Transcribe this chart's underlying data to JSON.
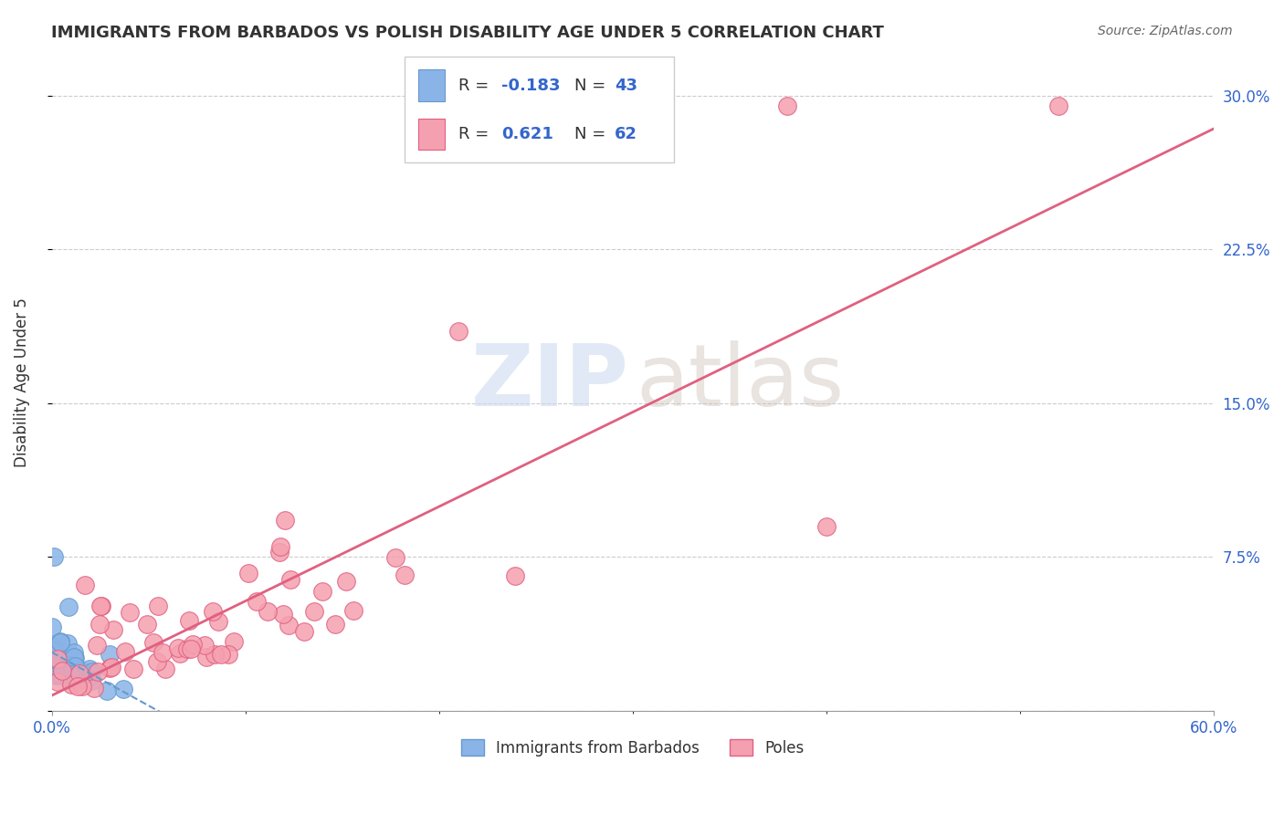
{
  "title": "IMMIGRANTS FROM BARBADOS VS POLISH DISABILITY AGE UNDER 5 CORRELATION CHART",
  "source": "Source: ZipAtlas.com",
  "ylabel": "Disability Age Under 5",
  "xlim": [
    0.0,
    0.6
  ],
  "ylim": [
    0.0,
    0.32
  ],
  "y_ticks": [
    0.0,
    0.075,
    0.15,
    0.225,
    0.3
  ],
  "y_tick_labels": [
    "",
    "7.5%",
    "15.0%",
    "22.5%",
    "30.0%"
  ],
  "grid_color": "#cccccc",
  "background_color": "#ffffff",
  "barbados_color": "#8ab4e8",
  "barbados_edge_color": "#6699cc",
  "poles_color": "#f5a0b0",
  "poles_edge_color": "#e06080",
  "barbados_R": -0.183,
  "barbados_N": 43,
  "poles_R": 0.621,
  "poles_N": 62,
  "legend_R_color": "#3366cc"
}
